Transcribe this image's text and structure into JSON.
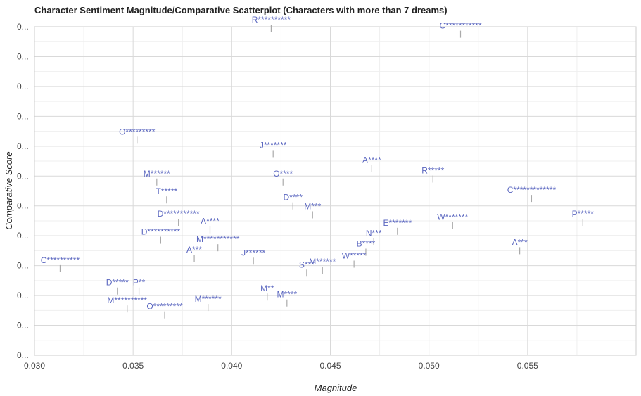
{
  "chart_data": {
    "type": "scatter",
    "title": "Character Sentiment Magnitude/Comparative Scatterplot (Characters with more than 7 dreams)",
    "xlabel": "Magnitude",
    "ylabel": "Comparative Score",
    "xlim": [
      0.03,
      0.0605
    ],
    "ylim": [
      0,
      11
    ],
    "x_ticks": [
      "0.030",
      "0.035",
      "0.040",
      "0.045",
      "0.050",
      "0.055"
    ],
    "x_tick_values": [
      0.03,
      0.035,
      0.04,
      0.045,
      0.05,
      0.055
    ],
    "y_ticks": [
      "0...",
      "0...",
      "0...",
      "0...",
      "0...",
      "0...",
      "0...",
      "0...",
      "0...",
      "0...",
      "0...",
      "0..."
    ],
    "y_tick_values": [
      0,
      1,
      2,
      3,
      4,
      5,
      6,
      7,
      8,
      9,
      10,
      11
    ],
    "grid": true,
    "point_color": "#5b67c0",
    "points": [
      {
        "label": "R**********",
        "x": 0.042,
        "y": 10.95
      },
      {
        "label": "C***********",
        "x": 0.0516,
        "y": 10.75
      },
      {
        "label": "O*********",
        "x": 0.0352,
        "y": 7.2
      },
      {
        "label": "J*******",
        "x": 0.0421,
        "y": 6.75
      },
      {
        "label": "A****",
        "x": 0.0471,
        "y": 6.25
      },
      {
        "label": "R*****",
        "x": 0.0502,
        "y": 5.9
      },
      {
        "label": "M******",
        "x": 0.0362,
        "y": 5.8
      },
      {
        "label": "O****",
        "x": 0.0426,
        "y": 5.8
      },
      {
        "label": "C*************",
        "x": 0.0552,
        "y": 5.25
      },
      {
        "label": "T*****",
        "x": 0.0367,
        "y": 5.2
      },
      {
        "label": "D****",
        "x": 0.0431,
        "y": 5.0
      },
      {
        "label": "M***",
        "x": 0.0441,
        "y": 4.7
      },
      {
        "label": "D***********",
        "x": 0.0373,
        "y": 4.45
      },
      {
        "label": "A****",
        "x": 0.0389,
        "y": 4.2
      },
      {
        "label": "P*****",
        "x": 0.0578,
        "y": 4.45
      },
      {
        "label": "W*******",
        "x": 0.0512,
        "y": 4.35
      },
      {
        "label": "E*******",
        "x": 0.0484,
        "y": 4.15
      },
      {
        "label": "D**********",
        "x": 0.0364,
        "y": 3.85
      },
      {
        "label": "N***",
        "x": 0.0472,
        "y": 3.8
      },
      {
        "label": "M***********",
        "x": 0.0393,
        "y": 3.6
      },
      {
        "label": "B****",
        "x": 0.0468,
        "y": 3.45
      },
      {
        "label": "A***",
        "x": 0.0546,
        "y": 3.5
      },
      {
        "label": "A***",
        "x": 0.0381,
        "y": 3.25
      },
      {
        "label": "J******",
        "x": 0.0411,
        "y": 3.15
      },
      {
        "label": "W*****",
        "x": 0.0462,
        "y": 3.05
      },
      {
        "label": "M******",
        "x": 0.0446,
        "y": 2.85
      },
      {
        "label": "S***",
        "x": 0.0438,
        "y": 2.75
      },
      {
        "label": "C**********",
        "x": 0.0313,
        "y": 2.9
      },
      {
        "label": "D*****",
        "x": 0.0342,
        "y": 2.15
      },
      {
        "label": "P**",
        "x": 0.0353,
        "y": 2.15
      },
      {
        "label": "M**",
        "x": 0.0418,
        "y": 1.95
      },
      {
        "label": "M****",
        "x": 0.0428,
        "y": 1.75
      },
      {
        "label": "M******",
        "x": 0.0388,
        "y": 1.6
      },
      {
        "label": "M**********",
        "x": 0.0347,
        "y": 1.55
      },
      {
        "label": "O*********",
        "x": 0.0366,
        "y": 1.35
      }
    ]
  }
}
